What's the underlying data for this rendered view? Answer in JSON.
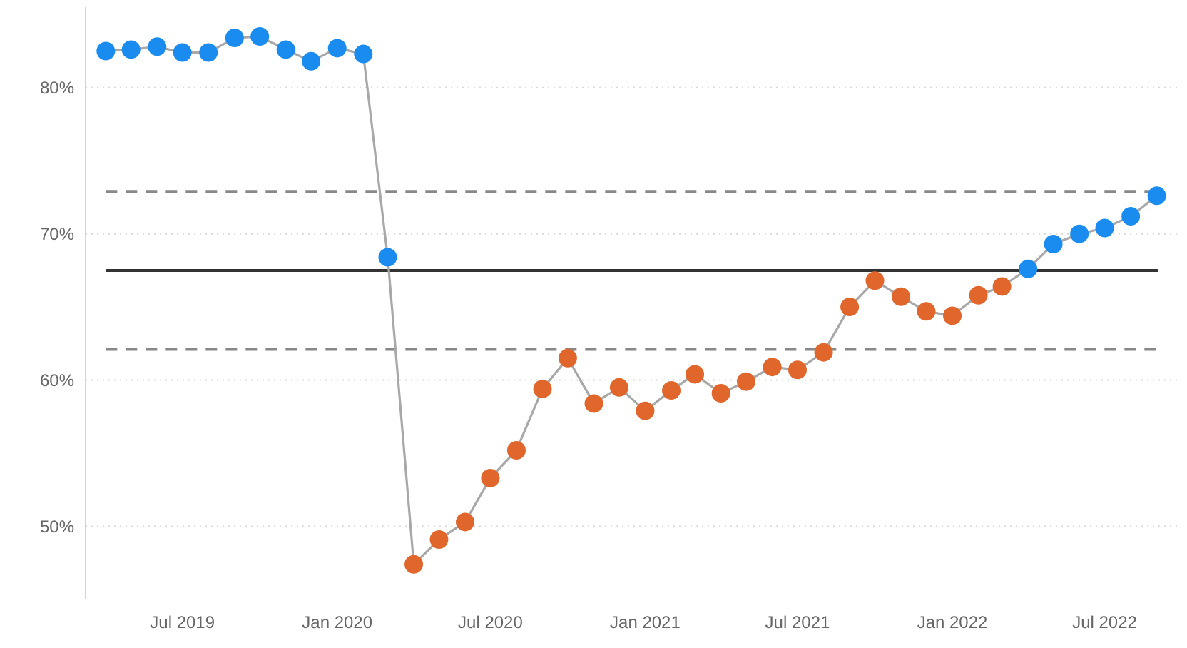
{
  "chart_data": {
    "type": "line",
    "x": [
      "2019-04",
      "2019-05",
      "2019-06",
      "2019-07",
      "2019-08",
      "2019-09",
      "2019-10",
      "2019-11",
      "2019-12",
      "2020-01",
      "2020-02",
      "2020-03",
      "2020-04",
      "2020-05",
      "2020-06",
      "2020-07",
      "2020-08",
      "2020-09",
      "2020-10",
      "2020-11",
      "2020-12",
      "2021-01",
      "2021-02",
      "2021-03",
      "2021-04",
      "2021-05",
      "2021-06",
      "2021-07",
      "2021-08",
      "2021-09",
      "2021-10",
      "2021-11",
      "2021-12",
      "2022-01",
      "2022-02",
      "2022-03",
      "2022-04",
      "2022-05",
      "2022-06",
      "2022-07",
      "2022-08",
      "2022-09"
    ],
    "series": [
      {
        "type": "line",
        "color": "#a8a8a8",
        "marker": "circle",
        "line_style": "solid",
        "values": [
          82.5,
          82.6,
          82.8,
          82.4,
          82.4,
          83.4,
          83.5,
          82.6,
          81.8,
          82.7,
          82.3,
          68.4,
          47.4,
          49.1,
          50.3,
          53.3,
          55.2,
          59.4,
          61.5,
          58.4,
          59.5,
          57.9,
          59.3,
          60.4,
          59.1,
          59.9,
          60.9,
          60.7,
          61.9,
          65.0,
          66.8,
          65.7,
          64.7,
          64.4,
          65.8,
          66.4,
          67.6,
          69.3,
          70.0,
          70.4,
          71.2,
          72.6
        ],
        "colors": [
          "#1a8cf0",
          "#1a8cf0",
          "#1a8cf0",
          "#1a8cf0",
          "#1a8cf0",
          "#1a8cf0",
          "#1a8cf0",
          "#1a8cf0",
          "#1a8cf0",
          "#1a8cf0",
          "#1a8cf0",
          "#1a8cf0",
          "#e0662c",
          "#e0662c",
          "#e0662c",
          "#e0662c",
          "#e0662c",
          "#e0662c",
          "#e0662c",
          "#e0662c",
          "#e0662c",
          "#e0662c",
          "#e0662c",
          "#e0662c",
          "#e0662c",
          "#e0662c",
          "#e0662c",
          "#e0662c",
          "#e0662c",
          "#e0662c",
          "#e0662c",
          "#e0662c",
          "#e0662c",
          "#e0662c",
          "#e0662c",
          "#e0662c",
          "#1a8cf0",
          "#1a8cf0",
          "#1a8cf0",
          "#1a8cf0",
          "#1a8cf0",
          "#1a8cf0"
        ]
      }
    ],
    "xlim": [
      "2019-03-08",
      "2022-09-25"
    ],
    "xticks": [
      {
        "value": "2019-07",
        "label": "Jul 2019"
      },
      {
        "value": "2020-01",
        "label": "Jan 2020"
      },
      {
        "value": "2020-07",
        "label": "Jul 2020"
      },
      {
        "value": "2021-01",
        "label": "Jan 2021"
      },
      {
        "value": "2021-07",
        "label": "Jul 2021"
      },
      {
        "value": "2022-01",
        "label": "Jan 2022"
      },
      {
        "value": "2022-07",
        "label": "Jul 2022"
      }
    ],
    "ylim": [
      45,
      85.5
    ],
    "yticks": [
      {
        "value": 50,
        "label": "50%"
      },
      {
        "value": 60,
        "label": "60%"
      },
      {
        "value": 70,
        "label": "70%"
      },
      {
        "value": 80,
        "label": "80%"
      }
    ],
    "grid": "y",
    "ref_lines": [
      {
        "axis": "y",
        "value": 67.5,
        "color": "#333333",
        "line_style": "solid"
      },
      {
        "axis": "y",
        "value": 72.9,
        "color": "#888888",
        "line_style": "dashed"
      },
      {
        "axis": "y",
        "value": 62.1,
        "color": "#888888",
        "line_style": "dashed"
      }
    ]
  }
}
